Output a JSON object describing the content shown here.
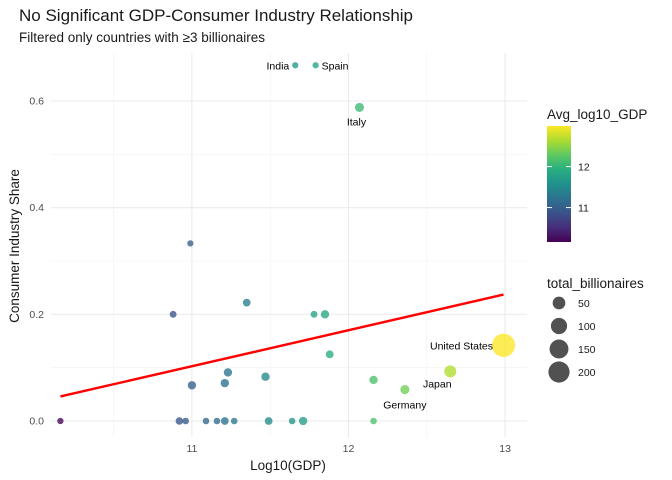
{
  "chart_data": {
    "type": "scatter",
    "title": "No Significant GDP-Consumer Industry Relationship",
    "subtitle": "Filtered only countries with ≥3 billionaires",
    "xlabel": "Log10(GDP)",
    "ylabel": "Consumer Industry Share",
    "xlim": [
      10.1,
      13.14
    ],
    "ylim": [
      -0.03,
      0.69
    ],
    "x_ticks": [
      11,
      12,
      13
    ],
    "y_ticks": [
      0.0,
      0.2,
      0.4,
      0.6
    ],
    "y_tick_labels": [
      "0.0",
      "0.2",
      "0.4",
      "0.6"
    ],
    "grid": true,
    "points": [
      {
        "x": 10.16,
        "y": 0.0,
        "size": 3,
        "color": 10.16
      },
      {
        "x": 10.88,
        "y": 0.2,
        "size": 5,
        "color": 10.88
      },
      {
        "x": 10.99,
        "y": 0.333,
        "size": 3,
        "color": 10.99
      },
      {
        "x": 10.92,
        "y": 0.0,
        "size": 8,
        "color": 10.92
      },
      {
        "x": 10.96,
        "y": 0.0,
        "size": 4,
        "color": 10.96
      },
      {
        "x": 11.0,
        "y": 0.067,
        "size": 12,
        "color": 11.0
      },
      {
        "x": 11.09,
        "y": 0.0,
        "size": 4,
        "color": 11.09
      },
      {
        "x": 11.16,
        "y": 0.0,
        "size": 4,
        "color": 11.16
      },
      {
        "x": 11.21,
        "y": 0.0,
        "size": 9,
        "color": 11.21
      },
      {
        "x": 11.21,
        "y": 0.071,
        "size": 12,
        "color": 11.21
      },
      {
        "x": 11.23,
        "y": 0.091,
        "size": 12,
        "color": 11.23
      },
      {
        "x": 11.27,
        "y": 0.0,
        "size": 4,
        "color": 11.27
      },
      {
        "x": 11.35,
        "y": 0.222,
        "size": 9,
        "color": 11.35
      },
      {
        "x": 11.47,
        "y": 0.083,
        "size": 12,
        "color": 11.47
      },
      {
        "x": 11.49,
        "y": 0.0,
        "size": 9,
        "color": 11.49
      },
      {
        "x": 11.64,
        "y": 0.0,
        "size": 4,
        "color": 11.64
      },
      {
        "x": 11.71,
        "y": 0.0,
        "size": 12,
        "color": 11.71
      },
      {
        "x": 11.78,
        "y": 0.2,
        "size": 5,
        "color": 11.78
      },
      {
        "x": 11.85,
        "y": 0.2,
        "size": 12,
        "color": 11.85
      },
      {
        "x": 11.88,
        "y": 0.125,
        "size": 9,
        "color": 11.88
      },
      {
        "x": 12.16,
        "y": 0.0,
        "size": 4,
        "color": 12.16
      },
      {
        "x": 12.16,
        "y": 0.077,
        "size": 12,
        "color": 12.16
      },
      {
        "x": 11.66,
        "y": 0.667,
        "size": 3,
        "color": 11.66,
        "label": "India"
      },
      {
        "x": 11.79,
        "y": 0.667,
        "size": 3,
        "color": 11.79,
        "label": "Spain"
      },
      {
        "x": 12.07,
        "y": 0.588,
        "size": 17,
        "color": 12.07,
        "label": "Italy"
      },
      {
        "x": 12.36,
        "y": 0.059,
        "size": 17,
        "color": 12.36,
        "label": "Germany"
      },
      {
        "x": 12.65,
        "y": 0.093,
        "size": 43,
        "color": 12.65,
        "label": "Japan"
      },
      {
        "x": 12.99,
        "y": 0.142,
        "size": 250,
        "color": 12.99,
        "label": "United States"
      }
    ],
    "trend_line": {
      "x": [
        10.16,
        12.99
      ],
      "y": [
        0.046,
        0.237
      ],
      "color": "#ff0000"
    },
    "color_legend": {
      "title": "Avg_log10_GDP",
      "min": 10.16,
      "max": 12.99,
      "ticks": [
        11,
        12
      ],
      "scale": "viridis"
    },
    "size_legend": {
      "title": "total_billionaires",
      "values": [
        50,
        100,
        150,
        200
      ]
    }
  }
}
